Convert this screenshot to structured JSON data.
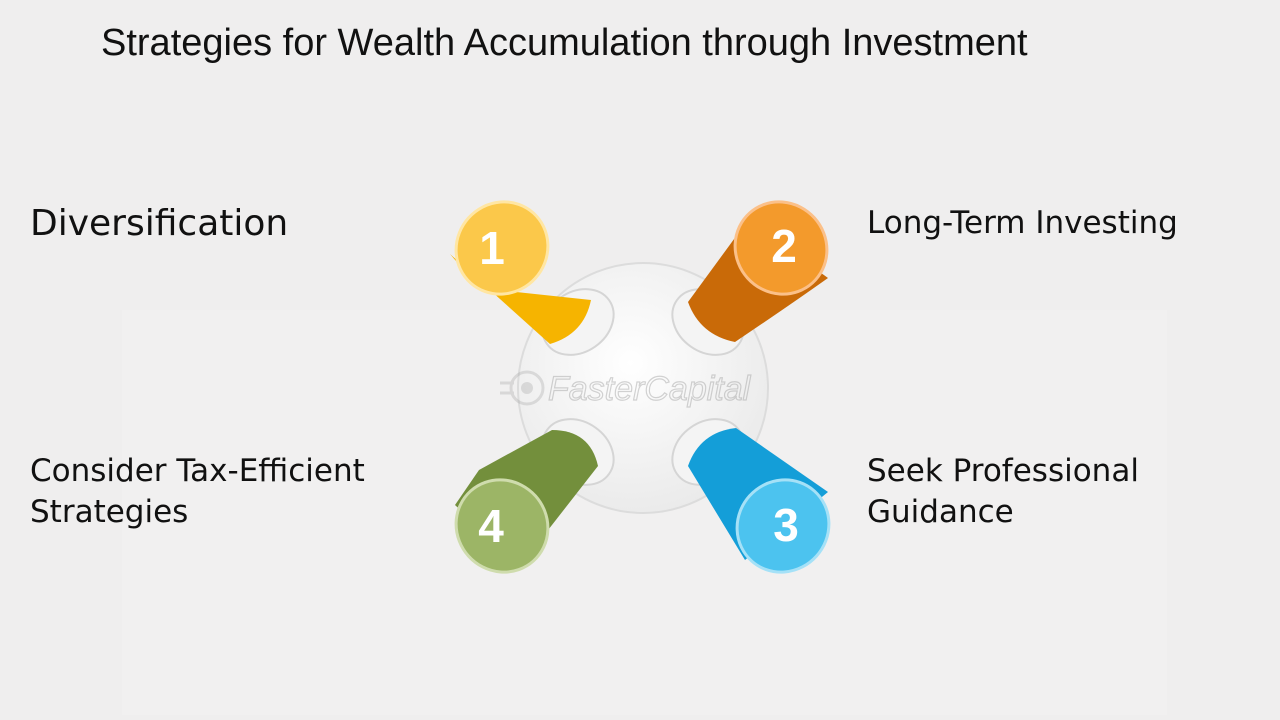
{
  "title": "Strategies for Wealth Accumulation through Investment",
  "watermark": "FasterCapital",
  "steps": [
    {
      "number": "1",
      "label": "Diversification",
      "color": "#f6b400",
      "cap_color": "#fbc84a"
    },
    {
      "number": "2",
      "label": "Long-Term Investing",
      "color": "#c96a08",
      "cap_color": "#f39a2c"
    },
    {
      "number": "3",
      "label": "Seek Professional Guidance",
      "color": "#149ed8",
      "cap_color": "#4cc3ef"
    },
    {
      "number": "4",
      "label": "Consider Tax-Efficient Strategies",
      "color": "#738f3c",
      "cap_color": "#9cb566"
    }
  ]
}
